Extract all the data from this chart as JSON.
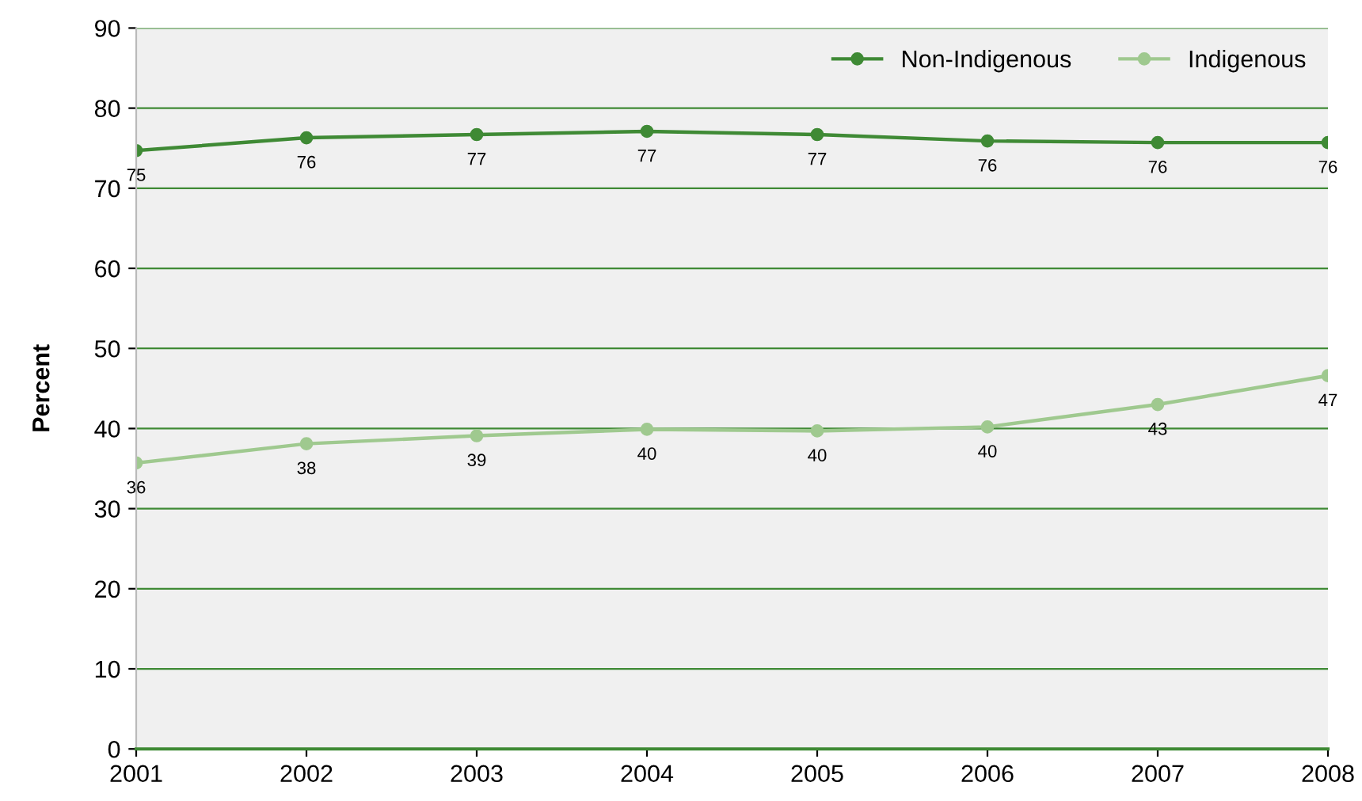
{
  "chart_data": {
    "type": "line",
    "ylabel": "Percent",
    "x": [
      2001,
      2002,
      2003,
      2004,
      2005,
      2006,
      2007,
      2008
    ],
    "series": [
      {
        "name": "Non-Indigenous",
        "color": "#3f8a35",
        "values": [
          74.7,
          76.3,
          76.7,
          77.1,
          76.7,
          75.9,
          75.7,
          75.7
        ],
        "value_labels": [
          "75",
          "76",
          "77",
          "77",
          "77",
          "76",
          "76",
          "76"
        ]
      },
      {
        "name": "Indigenous",
        "color": "#9fc98f",
        "values": [
          35.7,
          38.1,
          39.1,
          39.9,
          39.7,
          40.2,
          43.0,
          46.6
        ],
        "value_labels": [
          "36",
          "38",
          "39",
          "40",
          "40",
          "40",
          "43",
          "47"
        ]
      }
    ],
    "xlim": [
      2001,
      2008
    ],
    "xticks": [
      2001,
      2002,
      2003,
      2004,
      2005,
      2006,
      2007,
      2008
    ],
    "ylim": [
      0,
      90
    ],
    "yticks": [
      0,
      10,
      20,
      30,
      40,
      50,
      60,
      70,
      80,
      90
    ],
    "grid": "y",
    "legend": "top right",
    "marker": "circle",
    "line_style": "solid"
  }
}
